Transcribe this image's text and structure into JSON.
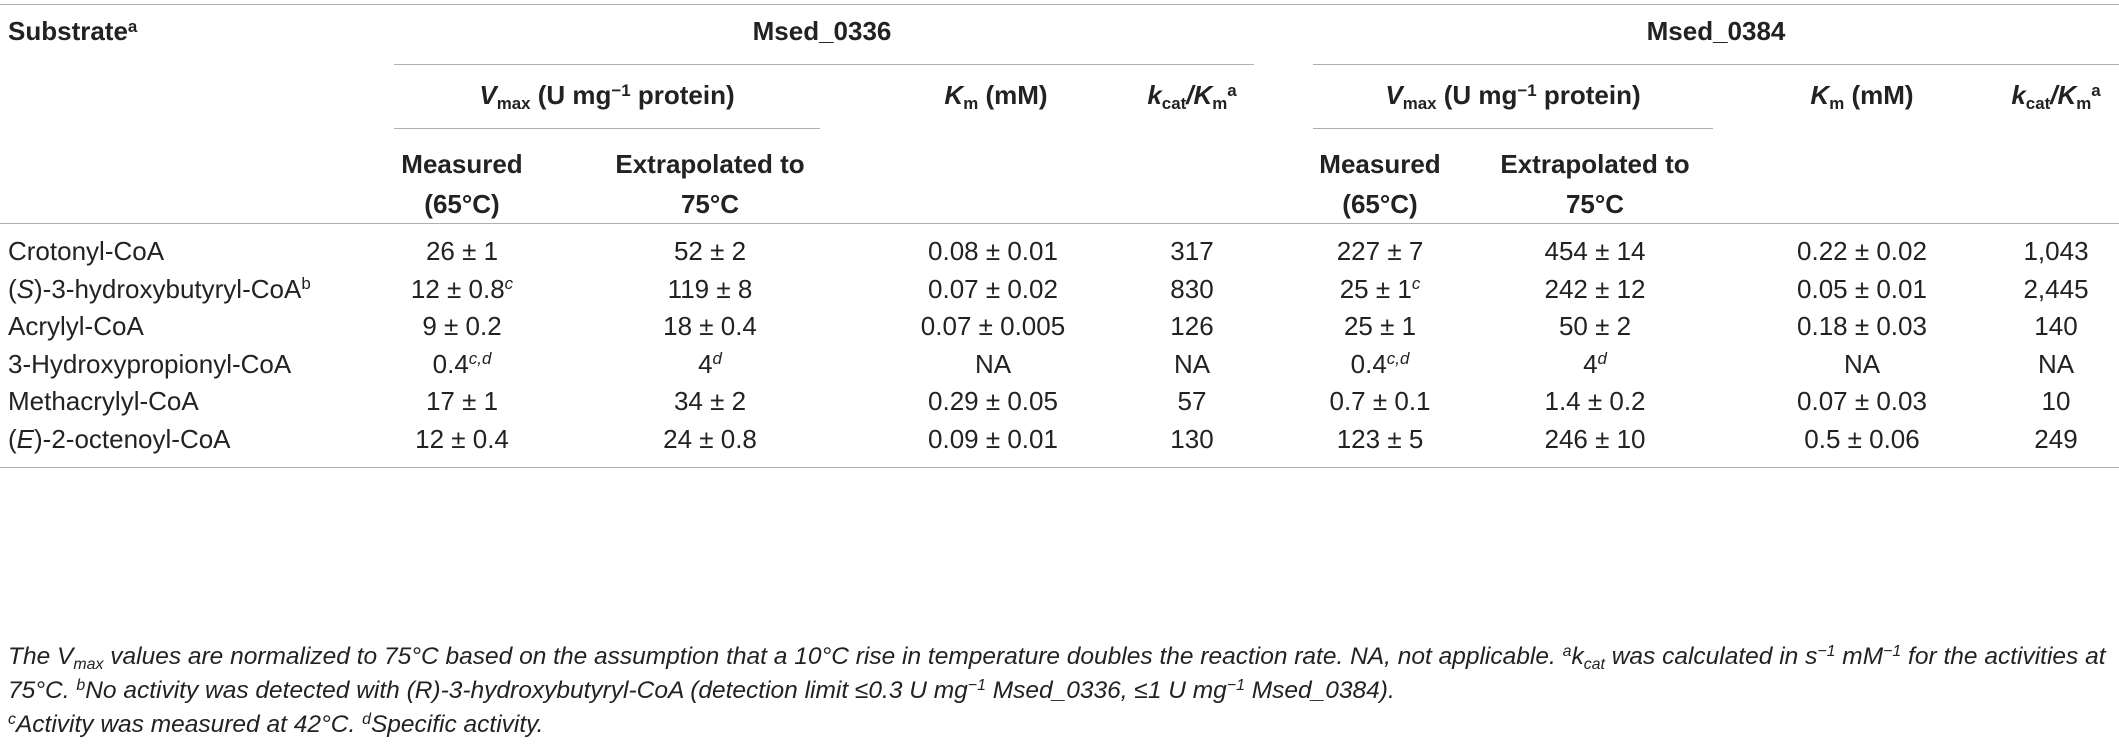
{
  "header": {
    "substrate": "Substrate",
    "substrate_sup": "a",
    "enzyme1": "Msed_0336",
    "enzyme2": "Msed_0384",
    "vmax_v": "V",
    "vmax_sub": "max",
    "vmax_text1": " (U mg",
    "vmax_sup": "−1",
    "vmax_text2": " protein)",
    "km_k": "K",
    "km_sub": "m",
    "km_unit": " (mM)",
    "kcat_k": "k",
    "kcat_sub": "cat",
    "kcat_slash": "/K",
    "kcat_sub2": "m",
    "kcat_sup": "a",
    "measured_1": "Measured",
    "measured_2": "(65°C)",
    "extrap_1": "Extrapolated to",
    "extrap_2": "75°C"
  },
  "rows": [
    {
      "pre_italic": "",
      "italic": "",
      "name": "Crotonyl-CoA",
      "name_sup": "",
      "c1": "26 ± 1",
      "c1_sup": "",
      "c2": "52 ± 2",
      "c2_sup": "",
      "c3": "0.08 ± 0.01",
      "c4": "317",
      "c5": "227 ± 7",
      "c5_sup": "",
      "c6": "454 ± 14",
      "c6_sup": "",
      "c7": "0.22 ± 0.02",
      "c8": "1,043"
    },
    {
      "pre_italic": "(",
      "italic": "S",
      "name": ")-3-hydroxybutyryl-CoA",
      "name_sup": "b",
      "c1": "12 ± 0.8",
      "c1_sup": "c",
      "c2": "119 ± 8",
      "c2_sup": "",
      "c3": "0.07 ± 0.02",
      "c4": "830",
      "c5": "25 ± 1",
      "c5_sup": "c",
      "c6": "242 ± 12",
      "c6_sup": "",
      "c7": "0.05 ± 0.01",
      "c8": "2,445"
    },
    {
      "pre_italic": "",
      "italic": "",
      "name": "Acrylyl-CoA",
      "name_sup": "",
      "c1": "9 ± 0.2",
      "c1_sup": "",
      "c2": "18 ± 0.4",
      "c2_sup": "",
      "c3": "0.07 ± 0.005",
      "c4": "126",
      "c5": "25 ± 1",
      "c5_sup": "",
      "c6": "50 ± 2",
      "c6_sup": "",
      "c7": "0.18 ± 0.03",
      "c8": "140"
    },
    {
      "pre_italic": "",
      "italic": "",
      "name": "3-Hydroxypropionyl-CoA",
      "name_sup": "",
      "c1": "0.4",
      "c1_sup": "c,d",
      "c2": "4",
      "c2_sup": "d",
      "c3": "NA",
      "c4": "NA",
      "c5": "0.4",
      "c5_sup": "c,d",
      "c6": "4",
      "c6_sup": "d",
      "c7": "NA",
      "c8": "NA"
    },
    {
      "pre_italic": "",
      "italic": "",
      "name": "Methacrylyl-CoA",
      "name_sup": "",
      "c1": "17 ± 1",
      "c1_sup": "",
      "c2": "34 ± 2",
      "c2_sup": "",
      "c3": "0.29 ± 0.05",
      "c4": "57",
      "c5": "0.7 ± 0.1",
      "c5_sup": "",
      "c6": "1.4 ± 0.2",
      "c6_sup": "",
      "c7": "0.07 ± 0.03",
      "c8": "10"
    },
    {
      "pre_italic": "(",
      "italic": "E",
      "name": ")-2-octenoyl-CoA",
      "name_sup": "",
      "c1": "12 ± 0.4",
      "c1_sup": "",
      "c2": "24 ± 0.8",
      "c2_sup": "",
      "c3": "0.09 ± 0.01",
      "c4": "130",
      "c5": "123 ± 5",
      "c5_sup": "",
      "c6": "246 ± 10",
      "c6_sup": "",
      "c7": "0.5 ± 0.06",
      "c8": "249"
    }
  ],
  "footnote": {
    "p1": "The V",
    "p1_sub": "max",
    "p2": " values are normalized to 75°C based on the assumption that a 10°C rise in temperature doubles the reaction rate. NA, not applicable. ",
    "a_sup": "a",
    "p3": "k",
    "p3_sub": "cat",
    "p4": " was calculated in s",
    "p4_sup": "−1",
    "p5": " mM",
    "p5_sup": "−1",
    "p6": " for the activities at 75°C. ",
    "b_sup": "b",
    "p7": "No activity was detected with (R)-3-hydroxybutyryl-CoA (detection limit ≤0.3 U mg",
    "p7_sup": "−1",
    "p8": " Msed_0336, ≤1 U mg",
    "p8_sup": "−1",
    "p9": " Msed_0384).",
    "c_sup": "c",
    "p10": "Activity was measured at 42°C. ",
    "d_sup": "d",
    "p11": "Specific activity."
  }
}
